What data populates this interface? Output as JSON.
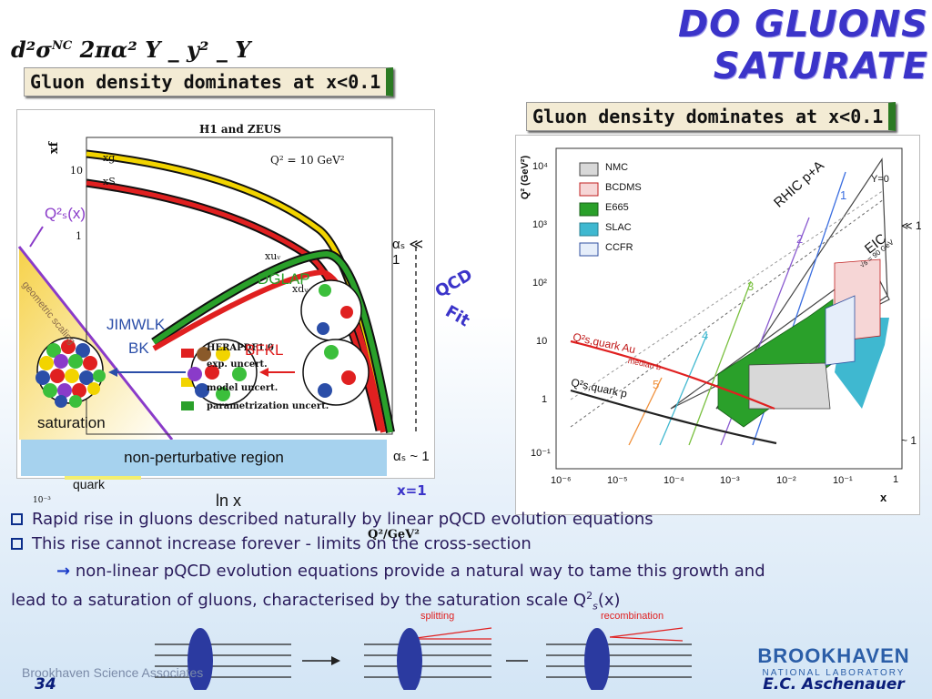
{
  "slide": {
    "title": "DO GLUONS SATURATE",
    "formula_left": "d²σ",
    "formula_sup": "NC",
    "formula_mid": "   2πα²  Y   _   y²  _  Y",
    "banner_left": "Gluon density dominates at x<0.1",
    "banner_right": "Gluon density dominates at x<0.1",
    "page_number": "34",
    "footer_left": "Brookhaven Science Associates",
    "logo_main": "BROOKHAVEN",
    "logo_sub": "NATIONAL LABORATORY",
    "author": "E.C. Aschenauer"
  },
  "left_figure": {
    "h1_title": "H1 and ZEUS",
    "q2_label": "Q² = 10 GeV²",
    "yaxis": "xf",
    "curve_xg": "xg",
    "curve_xs": "xS",
    "curve_xuv": "xuᵥ",
    "curve_xdv": "xdᵥ",
    "tick_10": "10",
    "tick_1": "1",
    "legend_title": "HERAPDF1.0",
    "legend_1": "exp. uncert.",
    "legend_2": "model uncert.",
    "legend_3": "parametrization uncert.",
    "qs_label": "Q²ₛ(x)",
    "geo_label": "geometric scaling",
    "jimwlk": "JIMWLK",
    "bk": "BK",
    "bfkl": "BFKL",
    "dglap": "DGLAP",
    "saturation": "saturation",
    "nonpert": "non-perturbative region",
    "quark": "quark",
    "lnx": "ln x",
    "x1": "x=1",
    "alpha_small": "αₛ ≪ 1",
    "alpha_one": "αₛ ~ 1",
    "q2axis": "Q²/GeV²",
    "tick_minus3": "10⁻³",
    "qcd_text": "QCD",
    "fit_text": "Fit"
  },
  "right_figure": {
    "yaxis": "Q² (GeV²)",
    "xaxis": "x",
    "legend": [
      "NMC",
      "BCDMS",
      "E665",
      "SLAC",
      "CCFR"
    ],
    "legend_colors": [
      "#ffffff",
      "#ffffff",
      "#2aa02a",
      "#3fb8d0",
      "#ffffff"
    ],
    "yticks": [
      "10⁴",
      "10³",
      "10²",
      "10",
      "1",
      "10⁻¹"
    ],
    "xticks": [
      "10⁻⁶",
      "10⁻⁵",
      "10⁻⁴",
      "10⁻³",
      "10⁻²",
      "10⁻¹",
      "1"
    ],
    "rhic": "RHIC p+A",
    "eic": "EIC",
    "eic_sub": "√s = 90 GeV",
    "y0": "Y=0",
    "qs_au": "Q²s,quark Au",
    "qs_au_sub": "median b",
    "qs_p": "Q²s,quark p",
    "line_labels": [
      "1",
      "2",
      "3",
      "4",
      "5"
    ],
    "edge_ll1": "≪ 1",
    "edge_ll2": "~ 1"
  },
  "bullets": {
    "b1": "Rapid rise in gluons described naturally by linear pQCD evolution equations",
    "b2": "This rise cannot increase forever - limits on the cross-section",
    "b3_arrow": "→",
    "b3a": " non-linear pQCD evolution equations provide a natural way to tame this growth and",
    "b3b": "lead to a saturation of gluons, characterised by the saturation scale Q",
    "b3_sup": "2",
    "b3_sub": "s",
    "b3_end": "(x)"
  },
  "diagram": {
    "splitting": "splitting",
    "recombination": "recombination"
  }
}
